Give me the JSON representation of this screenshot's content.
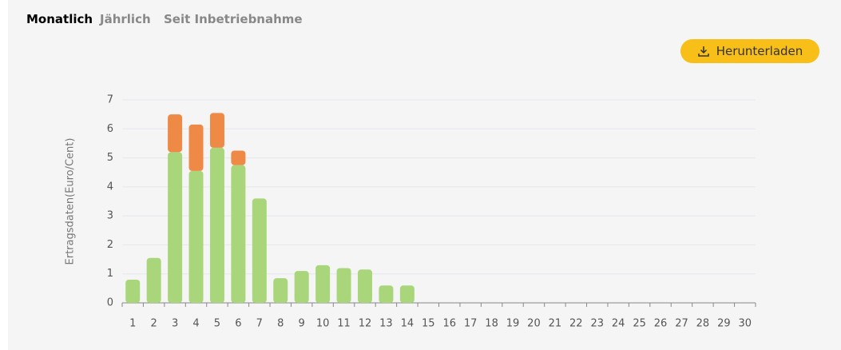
{
  "tabs": [
    "Monatlich",
    "Jährlich",
    "Seit Inbetriebnahme"
  ],
  "button": {
    "label": "Herunterladen"
  },
  "chart_data": {
    "type": "bar",
    "stacked": true,
    "y_label": "Ertragsdaten(Euro/Cent)",
    "categories": [
      "1",
      "2",
      "3",
      "4",
      "5",
      "6",
      "7",
      "8",
      "9",
      "10",
      "11",
      "12",
      "13",
      "14",
      "15",
      "16",
      "17",
      "18",
      "19",
      "20",
      "21",
      "22",
      "23",
      "24",
      "25",
      "26",
      "27",
      "28",
      "29",
      "30"
    ],
    "series": [
      {
        "color": "#a9d67a",
        "values": [
          0.8,
          1.55,
          5.2,
          4.55,
          5.35,
          4.75,
          3.6,
          0.85,
          1.1,
          1.3,
          1.2,
          1.15,
          0.6,
          0.6,
          0,
          0,
          0,
          0,
          0,
          0,
          0,
          0,
          0,
          0,
          0,
          0,
          0,
          0,
          0,
          0
        ]
      },
      {
        "color": "#ee8a45",
        "values": [
          0,
          0,
          1.3,
          1.6,
          1.2,
          0.5,
          0,
          0,
          0,
          0,
          0,
          0,
          0,
          0,
          0,
          0,
          0,
          0,
          0,
          0,
          0,
          0,
          0,
          0,
          0,
          0,
          0,
          0,
          0,
          0
        ]
      }
    ],
    "ylim": [
      0,
      7
    ],
    "yticks": [
      0,
      1,
      2,
      3,
      4,
      5,
      6,
      7
    ],
    "grid": true
  }
}
